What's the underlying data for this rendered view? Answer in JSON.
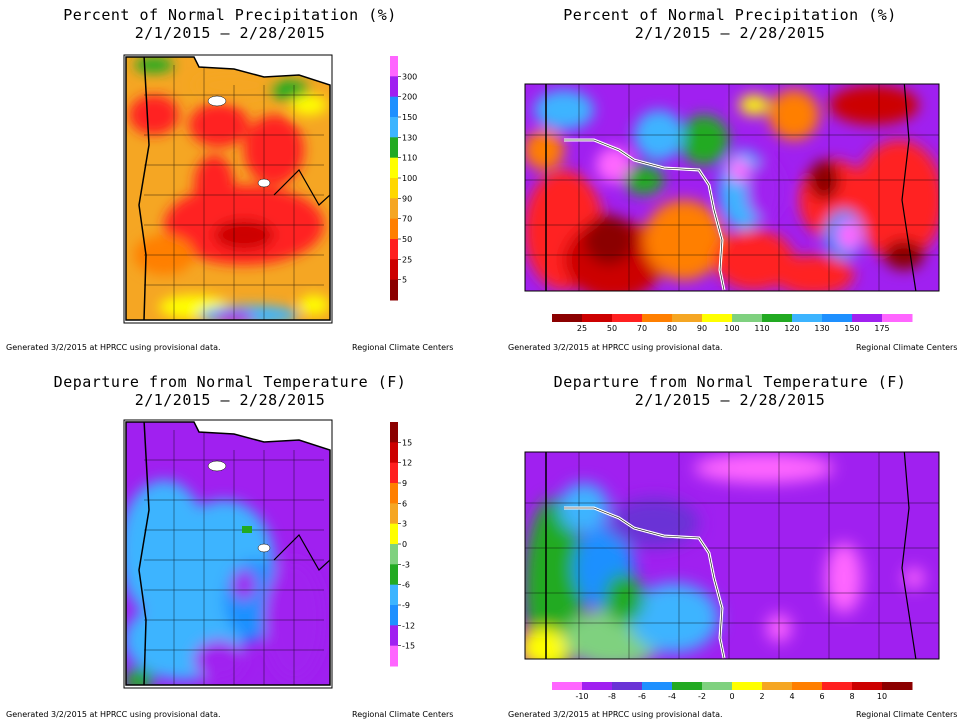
{
  "panels": [
    {
      "title": "Percent of Normal Precipitation (%)",
      "dates": "2/1/2015 – 2/28/2015",
      "footer_left": "Generated 3/2/2015 at HPRCC using provisional data.",
      "footer_right": "Regional Climate Centers",
      "region": "Minnesota",
      "legend_orientation": "vertical",
      "legend_labels": [
        "300",
        "200",
        "150",
        "130",
        "110",
        "100",
        "90",
        "70",
        "50",
        "25",
        "5"
      ],
      "legend_colors": [
        "#ff66ff",
        "#a020f0",
        "#1e90ff",
        "#3cb4ff",
        "#22aa22",
        "#ffff00",
        "#ffd700",
        "#f5a623",
        "#ff7f00",
        "#ff2020",
        "#cc0000",
        "#8b0000"
      ]
    },
    {
      "title": "Percent of Normal Precipitation (%)",
      "dates": "2/1/2015 – 2/28/2015",
      "footer_left": "Generated 3/2/2015 at HPRCC using provisional data.",
      "footer_right": "Regional Climate Centers",
      "region": "North Dakota",
      "legend_orientation": "horizontal",
      "legend_labels": [
        "25",
        "50",
        "70",
        "80",
        "90",
        "100",
        "110",
        "120",
        "130",
        "150",
        "175"
      ],
      "legend_colors": [
        "#8b0000",
        "#cc0000",
        "#ff2020",
        "#ff7f00",
        "#f5a623",
        "#ffff00",
        "#7fd17f",
        "#22aa22",
        "#3cb4ff",
        "#1e90ff",
        "#a020f0",
        "#ff66ff"
      ]
    },
    {
      "title": "Departure from Normal Temperature (F)",
      "dates": "2/1/2015 – 2/28/2015",
      "footer_left": "Generated 3/2/2015 at HPRCC using provisional data.",
      "footer_right": "Regional Climate Centers",
      "region": "Minnesota",
      "legend_orientation": "vertical",
      "legend_labels": [
        "15",
        "12",
        "9",
        "6",
        "3",
        "0",
        "-3",
        "-6",
        "-9",
        "-12",
        "-15"
      ],
      "legend_colors": [
        "#8b0000",
        "#cc0000",
        "#ff2020",
        "#ff7f00",
        "#f5a623",
        "#ffff00",
        "#7fd17f",
        "#22aa22",
        "#3cb4ff",
        "#1e90ff",
        "#a020f0",
        "#ff66ff"
      ]
    },
    {
      "title": "Departure from Normal Temperature (F)",
      "dates": "2/1/2015 – 2/28/2015",
      "footer_left": "Generated 3/2/2015 at HPRCC using provisional data.",
      "footer_right": "Regional Climate Centers",
      "region": "North Dakota",
      "legend_orientation": "horizontal",
      "legend_labels": [
        "-10",
        "-8",
        "-6",
        "-4",
        "-2",
        "0",
        "2",
        "4",
        "6",
        "8",
        "10"
      ],
      "legend_colors": [
        "#ff66ff",
        "#a020f0",
        "#6a33d6",
        "#1e90ff",
        "#22aa22",
        "#7fd17f",
        "#ffff00",
        "#f5a623",
        "#ff7f00",
        "#ff2020",
        "#cc0000",
        "#8b0000"
      ]
    }
  ]
}
